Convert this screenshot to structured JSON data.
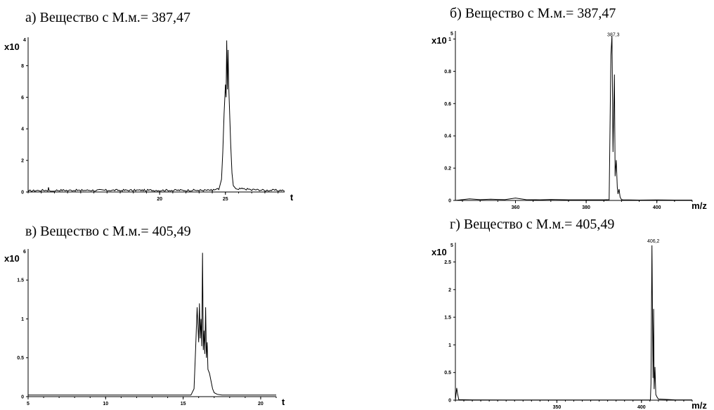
{
  "chart_data": [
    {
      "id": "a",
      "type": "line",
      "title": "а) Вещество с М.м.= 387,47",
      "xlabel": "t",
      "ylabel": "",
      "y_multiplier": {
        "base": "x10",
        "power": "4"
      },
      "xlim": [
        10,
        29.5
      ],
      "ylim": [
        0,
        9.8
      ],
      "x_ticks": [
        20,
        25
      ],
      "y_ticks": [
        0,
        2,
        4,
        6,
        8
      ],
      "noise_amplitude": 0.12,
      "series": [
        {
          "x": [
            10,
            11,
            11.5,
            11.55,
            11.6,
            11.7,
            12,
            13,
            14,
            15,
            16,
            17,
            18,
            19,
            20,
            21,
            22,
            23,
            24,
            24.5,
            24.7,
            24.8,
            24.9,
            25.0,
            25.05,
            25.1,
            25.15,
            25.2,
            25.25,
            25.3,
            25.4,
            25.5,
            25.6,
            25.8,
            26,
            27,
            28,
            29,
            29.5
          ],
          "y": [
            0,
            0.05,
            0.05,
            0.3,
            0.1,
            0.05,
            0.05,
            0.05,
            0.05,
            0.05,
            0.05,
            0.05,
            0.05,
            0.05,
            0.05,
            0.05,
            0.05,
            0.05,
            0.05,
            0.15,
            0.8,
            2.5,
            5.0,
            6.8,
            6.0,
            9.6,
            6.5,
            9.0,
            6.8,
            5.5,
            3.0,
            1.2,
            0.4,
            0.2,
            0.15,
            0.1,
            0.05,
            0.05,
            0.05
          ]
        }
      ]
    },
    {
      "id": "b",
      "type": "line",
      "title": "б) Вещество с М.м.= 387,47",
      "xlabel": "m/z",
      "ylabel": "",
      "y_multiplier": {
        "base": "x10",
        "power": "5"
      },
      "xlim": [
        343,
        410
      ],
      "ylim": [
        0,
        1.05
      ],
      "x_ticks": [
        360,
        380,
        400
      ],
      "y_ticks": [
        0.0,
        0.2,
        0.4,
        0.6,
        0.8,
        1.0
      ],
      "annotations": [
        {
          "x": 387.3,
          "y": 1.0,
          "text": "387,3"
        }
      ],
      "series": [
        {
          "x": [
            343,
            345,
            347,
            350,
            353,
            355,
            357,
            360,
            363,
            367,
            370,
            375,
            380,
            385,
            386.5,
            387,
            387.3,
            387.6,
            388,
            388.2,
            388.5,
            388.8,
            389,
            389.3,
            389.6,
            390,
            390.5,
            392,
            395,
            400,
            405,
            410
          ],
          "y": [
            0,
            0.005,
            0.01,
            0.005,
            0.008,
            0.006,
            0.005,
            0.015,
            0.005,
            0.004,
            0.006,
            0.004,
            0.004,
            0.004,
            0.005,
            0.9,
            1.02,
            0.3,
            0.78,
            0.15,
            0.25,
            0.08,
            0.04,
            0.07,
            0.02,
            0.005,
            0.003,
            0.003,
            0.002,
            0.003,
            0.002,
            0.002
          ]
        }
      ]
    },
    {
      "id": "v",
      "type": "line",
      "title": "в) Вещество с М.м.= 405,49",
      "xlabel": "t",
      "ylabel": "",
      "y_multiplier": {
        "base": "x10",
        "power": "6"
      },
      "xlim": [
        5,
        21
      ],
      "ylim": [
        0,
        1.9
      ],
      "x_ticks": [
        5,
        10,
        15,
        20
      ],
      "y_ticks": [
        0.0,
        0.5,
        1.0,
        1.5
      ],
      "series": [
        {
          "x": [
            5,
            15,
            15.5,
            15.7,
            15.8,
            15.9,
            16.0,
            16.05,
            16.1,
            16.15,
            16.2,
            16.25,
            16.3,
            16.35,
            16.4,
            16.45,
            16.5,
            16.55,
            16.6,
            16.7,
            16.8,
            16.9,
            17.0,
            17.2,
            17.5,
            21
          ],
          "y": [
            0.02,
            0.02,
            0.02,
            0.1,
            0.6,
            1.15,
            0.7,
            1.2,
            0.75,
            1.0,
            0.65,
            1.85,
            0.6,
            0.85,
            0.55,
            1.15,
            0.5,
            0.7,
            0.35,
            0.3,
            0.2,
            0.1,
            0.05,
            0.03,
            0.02,
            0.02
          ]
        }
      ]
    },
    {
      "id": "g",
      "type": "line",
      "title": "г) Вещество с М.м.= 405,49",
      "xlabel": "m/z",
      "ylabel": "",
      "y_multiplier": {
        "base": "x10",
        "power": "5"
      },
      "xlim": [
        290,
        430
      ],
      "ylim": [
        0,
        2.85
      ],
      "x_ticks": [
        350,
        400
      ],
      "y_ticks": [
        0.0,
        0.5,
        1.0,
        1.5,
        2.0,
        2.5
      ],
      "annotations": [
        {
          "x": 406.2,
          "y": 2.8,
          "text": "406,2"
        }
      ],
      "series": [
        {
          "x": [
            290,
            290.8,
            291.3,
            292,
            300,
            320,
            350,
            380,
            400,
            405.3,
            405.6,
            406.2,
            406.8,
            407.2,
            407.5,
            408,
            408.5,
            409.3,
            410,
            420,
            430
          ],
          "y": [
            0,
            0.22,
            0.12,
            0.01,
            0.005,
            0.004,
            0.003,
            0.003,
            0.003,
            0.004,
            0.3,
            2.8,
            0.4,
            1.65,
            0.2,
            0.6,
            0.1,
            0.05,
            0.02,
            0.005,
            0.005
          ]
        }
      ]
    }
  ]
}
